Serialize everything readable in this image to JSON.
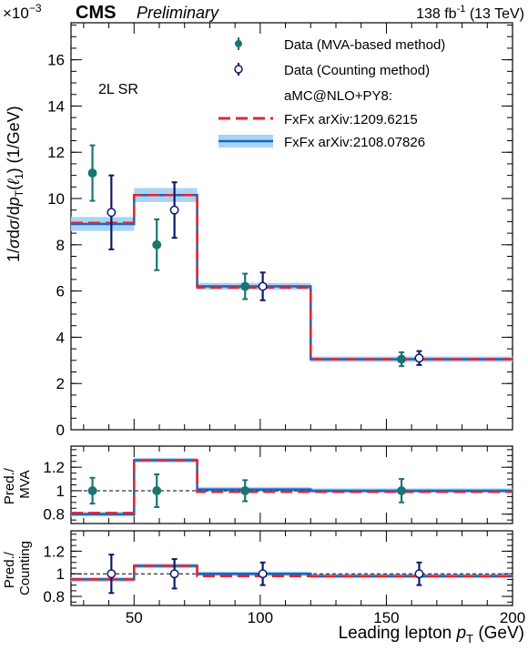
{
  "header": {
    "experiment": "CMS",
    "status": "Preliminary",
    "lumi": "138 fb",
    "lumi_sup": "-1",
    "energy": "(13 TeV)",
    "exponent_base": "×10",
    "exponent_sup": "−3"
  },
  "chart_data": {
    "type": "line",
    "region_label": "2L SR",
    "bins": [
      25,
      50,
      75,
      120,
      200
    ],
    "xlim": [
      25,
      200
    ],
    "xticks": [
      "50",
      "100",
      "150",
      "200"
    ],
    "xlabel": {
      "prefix": "Leading lepton ",
      "var": "p",
      "sub": "T",
      "suffix": " (GeV)"
    },
    "main": {
      "ylabel": "1/σdσ/dp_T(ℓ_1) (1/GeV)",
      "ylim": [
        0,
        17.6
      ],
      "yticks": [
        "0",
        "2",
        "4",
        "6",
        "8",
        "10",
        "12",
        "14",
        "16"
      ],
      "series": [
        {
          "name": "Data (MVA-based method)",
          "style": "points-filled",
          "color": "#1a7470",
          "x": [
            33.5,
            59,
            94,
            156
          ],
          "y": [
            11.1,
            8.0,
            6.2,
            3.05
          ],
          "err_up": [
            1.2,
            1.1,
            0.55,
            0.3
          ],
          "err_down": [
            1.2,
            1.1,
            0.55,
            0.3
          ]
        },
        {
          "name": "Data (Counting method)",
          "style": "points-open",
          "color": "#0d1a6b",
          "x": [
            41,
            66,
            101,
            163
          ],
          "y": [
            9.4,
            9.5,
            6.2,
            3.1
          ],
          "err_up": [
            1.6,
            1.2,
            0.6,
            0.3
          ],
          "err_down": [
            1.6,
            1.2,
            0.6,
            0.3
          ]
        },
        {
          "name": "FxFx arXiv:1209.6215",
          "style": "step-dashed",
          "color": "#e8242c",
          "y": [
            8.95,
            10.15,
            6.15,
            3.05
          ]
        },
        {
          "name": "FxFx arXiv:2108.07826",
          "style": "step-band",
          "color": "#1565c0",
          "band_color": "#a8d4f5",
          "y": [
            8.9,
            10.15,
            6.2,
            3.05
          ],
          "band": [
            0.3,
            0.3,
            0.15,
            0.12
          ]
        }
      ],
      "legend_header": "aMC@NLO+PY8:"
    },
    "ratio_mva": {
      "ylabel": [
        "Pred./",
        "MVA"
      ],
      "ylim": [
        0.72,
        1.38
      ],
      "yticks": [
        "0.8",
        "1",
        "1.2"
      ],
      "data": {
        "x": [
          33.5,
          59,
          94,
          156
        ],
        "y": [
          1,
          1,
          1,
          1
        ],
        "err": [
          0.11,
          0.14,
          0.09,
          0.1
        ]
      },
      "pred_red": [
        0.81,
        1.26,
        0.99,
        0.99
      ],
      "pred_blue": [
        0.8,
        1.26,
        1.01,
        1.0
      ],
      "band": [
        0.02,
        0.02,
        0.02,
        0.02
      ]
    },
    "ratio_counting": {
      "ylabel": [
        "Pred./",
        "Counting"
      ],
      "ylim": [
        0.72,
        1.38
      ],
      "yticks": [
        "0.8",
        "1",
        "1.2"
      ],
      "data": {
        "x": [
          41,
          66,
          101,
          163
        ],
        "y": [
          1,
          1,
          1,
          1
        ],
        "err": [
          0.17,
          0.13,
          0.1,
          0.1
        ]
      },
      "pred_red": [
        0.95,
        1.07,
        0.98,
        0.98
      ],
      "pred_blue": [
        0.95,
        1.07,
        1.0,
        0.98
      ],
      "band": [
        0.02,
        0.02,
        0.02,
        0.02
      ]
    }
  }
}
